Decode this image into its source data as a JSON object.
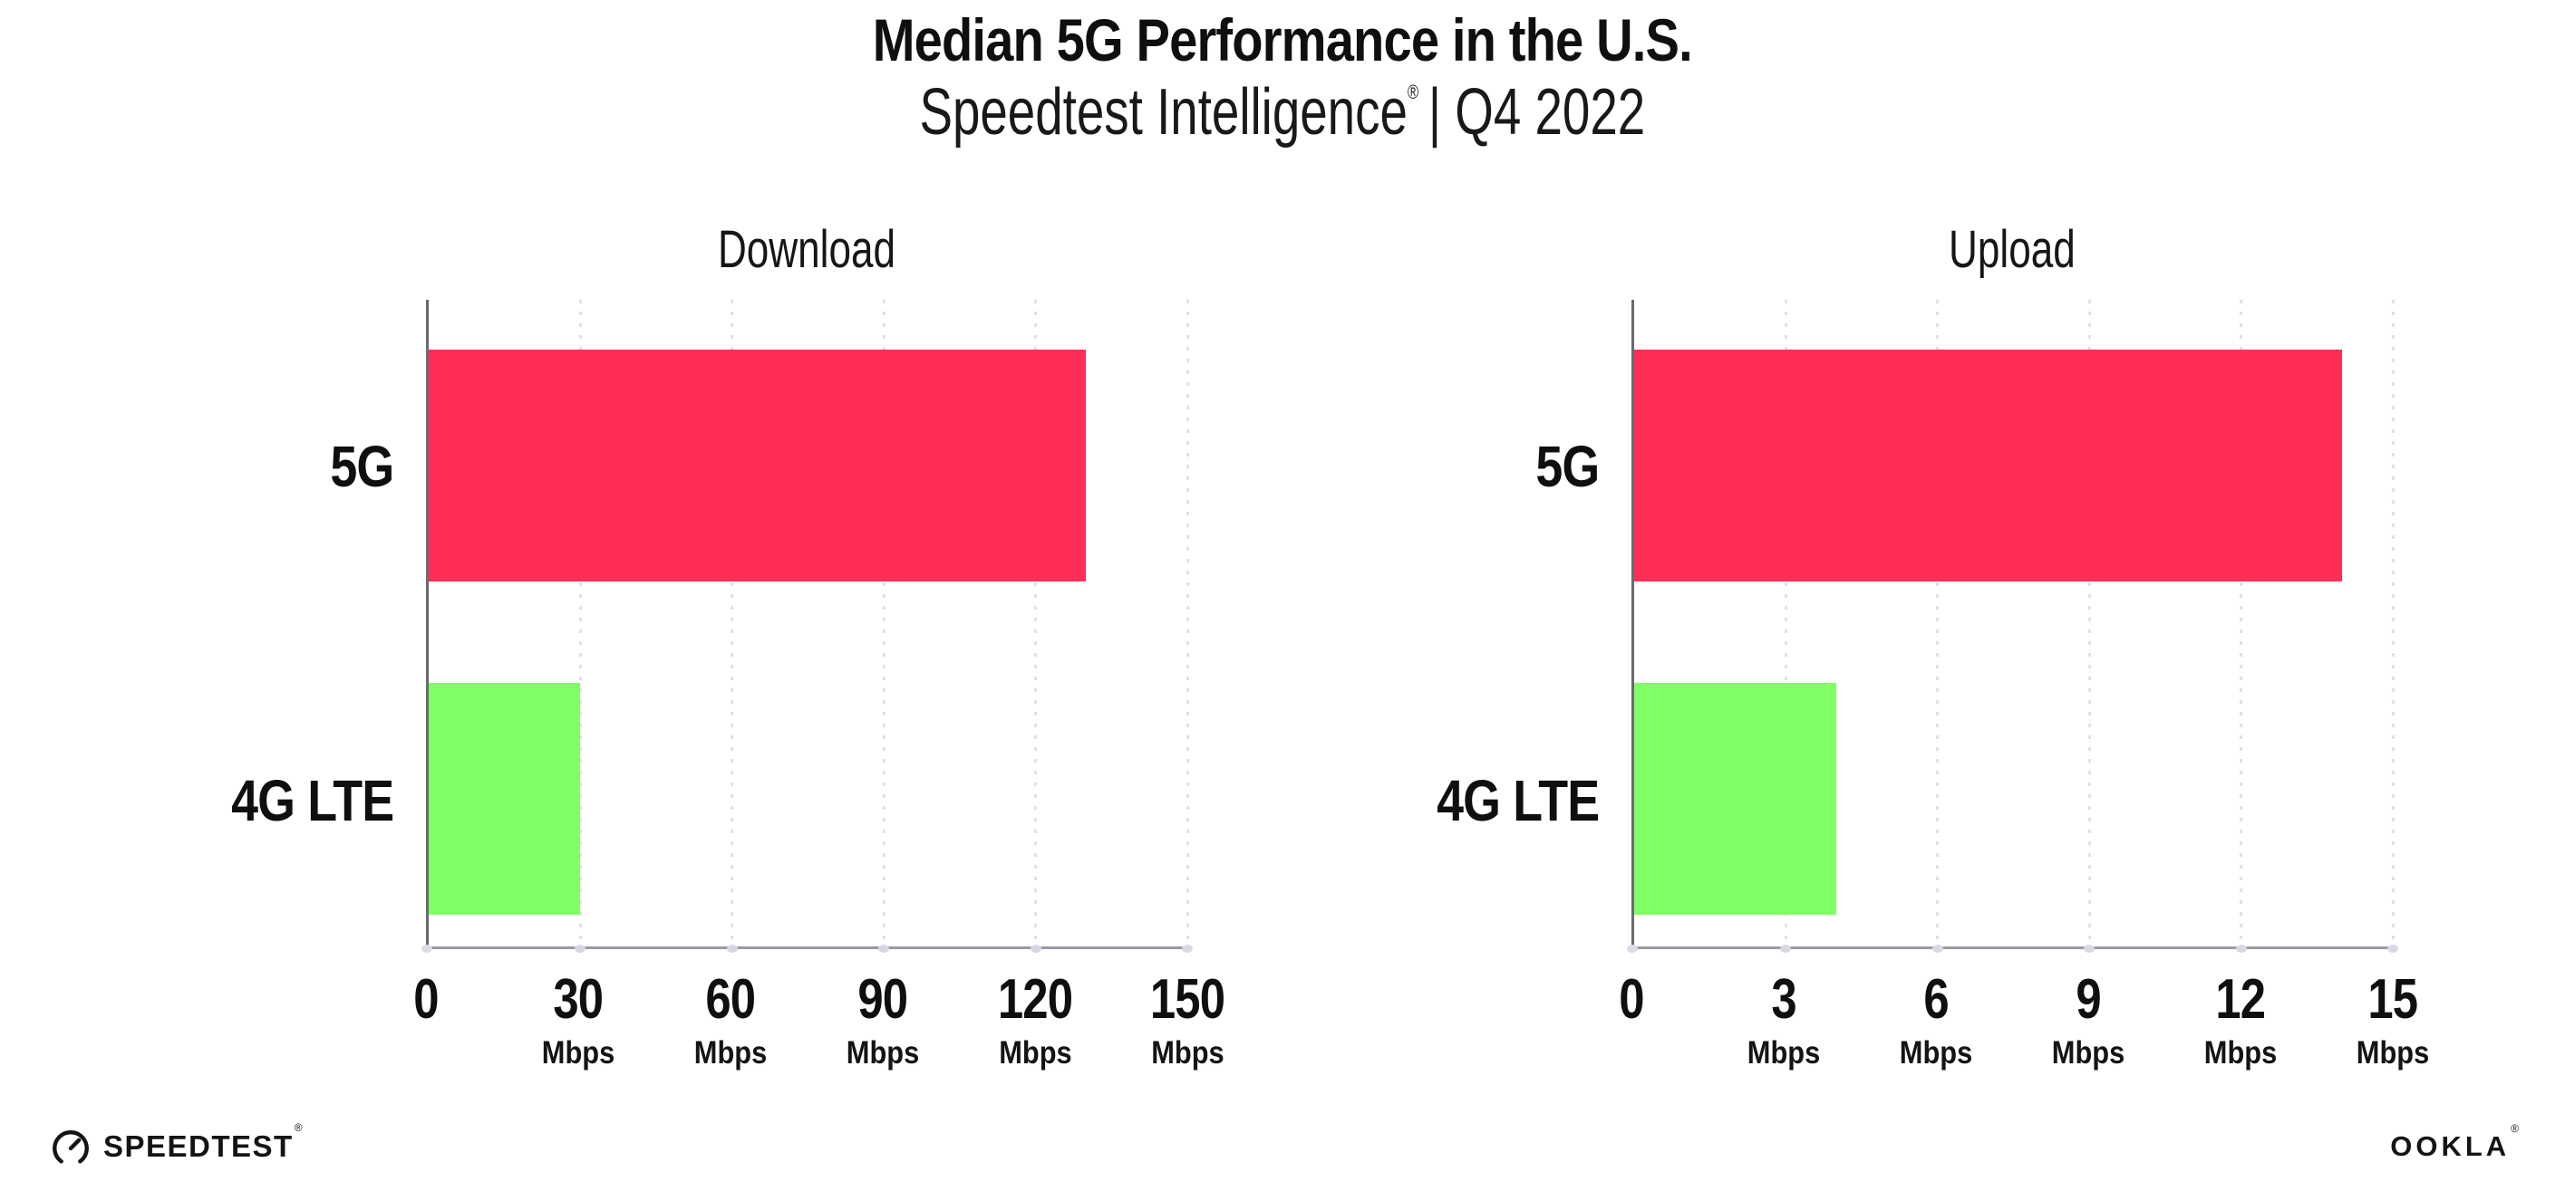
{
  "header": {
    "title": "Median 5G Performance in the U.S.",
    "subtitle_brand": "Speedtest Intelligence",
    "subtitle_reg": "®",
    "subtitle_rest": "| Q4 2022"
  },
  "colors": {
    "bar_5g": "#FF2E56",
    "bar_4g_lte": "#80FF66",
    "x_axis": "#9A9AA3",
    "y_axis": "#6A6A74",
    "gridline": "#E0E0EB",
    "text": "#0F0F10"
  },
  "chart_data": [
    {
      "type": "bar",
      "orientation": "horizontal",
      "title": "Download",
      "categories": [
        "5G",
        "4G LTE"
      ],
      "values": [
        130,
        30
      ],
      "values_estimated_from_pixels": true,
      "value_unit": "Mbps",
      "series_colors": [
        "#FF2E56",
        "#80FF66"
      ],
      "xlim": [
        0,
        150
      ],
      "xticks": [
        {
          "label": "0",
          "unit": ""
        },
        {
          "label": "30",
          "unit": "Mbps"
        },
        {
          "label": "60",
          "unit": "Mbps"
        },
        {
          "label": "90",
          "unit": "Mbps"
        },
        {
          "label": "120",
          "unit": "Mbps"
        },
        {
          "label": "150",
          "unit": "Mbps"
        }
      ],
      "grid": "dotted vertical gridlines at each tick",
      "legend": "none",
      "data_labels": "none"
    },
    {
      "type": "bar",
      "orientation": "horizontal",
      "title": "Upload",
      "categories": [
        "5G",
        "4G LTE"
      ],
      "values": [
        14,
        4
      ],
      "values_estimated_from_pixels": true,
      "value_unit": "Mbps",
      "series_colors": [
        "#FF2E56",
        "#80FF66"
      ],
      "xlim": [
        0,
        15
      ],
      "xticks": [
        {
          "label": "0",
          "unit": ""
        },
        {
          "label": "3",
          "unit": "Mbps"
        },
        {
          "label": "6",
          "unit": "Mbps"
        },
        {
          "label": "9",
          "unit": "Mbps"
        },
        {
          "label": "12",
          "unit": "Mbps"
        },
        {
          "label": "15",
          "unit": "Mbps"
        }
      ],
      "grid": "dotted vertical gridlines at each tick",
      "legend": "none",
      "data_labels": "none"
    }
  ],
  "footer": {
    "speedtest_label": "SPEEDTEST",
    "speedtest_reg": "®",
    "speedtest_icon": "speedtest-gauge-icon",
    "ookla_label": "OOKLA",
    "ookla_reg": "®"
  }
}
